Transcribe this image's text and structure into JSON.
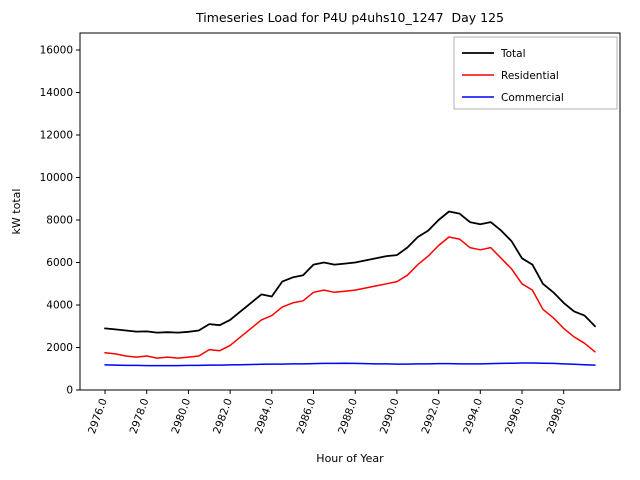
{
  "chart_data": {
    "type": "line",
    "title": "Timeseries Load for P4U p4uhs10_1247  Day 125",
    "xlabel": "Hour of Year",
    "ylabel": "kW total",
    "xlim": [
      2974.8,
      3000.7
    ],
    "ylim": [
      0,
      16800
    ],
    "grid": false,
    "legend_position": "upper right",
    "yticks": [
      0,
      2000,
      4000,
      6000,
      8000,
      10000,
      12000,
      14000,
      16000
    ],
    "xticks": [
      2976,
      2978,
      2980,
      2982,
      2984,
      2986,
      2988,
      2990,
      2992,
      2994,
      2996,
      2998
    ],
    "xtick_labels": [
      "2976.0",
      "2978.0",
      "2980.0",
      "2982.0",
      "2984.0",
      "2986.0",
      "2988.0",
      "2990.0",
      "2992.0",
      "2994.0",
      "2996.0",
      "2998.0"
    ],
    "x": [
      2976.0,
      2976.5,
      2977.0,
      2977.5,
      2978.0,
      2978.5,
      2979.0,
      2979.5,
      2980.0,
      2980.5,
      2981.0,
      2981.5,
      2982.0,
      2982.5,
      2983.0,
      2983.5,
      2984.0,
      2984.5,
      2985.0,
      2985.5,
      2986.0,
      2986.5,
      2987.0,
      2987.5,
      2988.0,
      2988.5,
      2989.0,
      2989.5,
      2990.0,
      2990.5,
      2991.0,
      2991.5,
      2992.0,
      2992.5,
      2993.0,
      2993.5,
      2994.0,
      2994.5,
      2995.0,
      2995.5,
      2996.0,
      2996.5,
      2997.0,
      2997.5,
      2998.0,
      2998.5,
      2999.0,
      2999.5
    ],
    "series": [
      {
        "name": "Total",
        "color": "#000000",
        "linewidth": 1.8,
        "values": [
          2900,
          2850,
          2800,
          2750,
          2760,
          2700,
          2720,
          2700,
          2740,
          2800,
          3100,
          3050,
          3300,
          3700,
          4100,
          4500,
          4400,
          5100,
          5300,
          5400,
          5900,
          6000,
          5900,
          5950,
          6000,
          6100,
          6200,
          6300,
          6350,
          6700,
          7200,
          7500,
          8000,
          8400,
          8300,
          7900,
          7800,
          7900,
          7500,
          7000,
          6200,
          5900,
          5000,
          4600,
          4100,
          3700,
          3500,
          3000
        ]
      },
      {
        "name": "Residential",
        "color": "#ff0000",
        "linewidth": 1.5,
        "values": [
          1750,
          1700,
          1600,
          1550,
          1600,
          1500,
          1550,
          1500,
          1550,
          1600,
          1900,
          1850,
          2100,
          2500,
          2900,
          3300,
          3500,
          3900,
          4100,
          4200,
          4600,
          4700,
          4600,
          4650,
          4700,
          4800,
          4900,
          5000,
          5100,
          5400,
          5900,
          6300,
          6800,
          7200,
          7100,
          6700,
          6600,
          6700,
          6200,
          5700,
          5000,
          4700,
          3800,
          3400,
          2900,
          2500,
          2200,
          1800
        ]
      },
      {
        "name": "Commercial",
        "color": "#0000ff",
        "linewidth": 1.5,
        "values": [
          1180,
          1170,
          1160,
          1160,
          1150,
          1150,
          1150,
          1150,
          1160,
          1160,
          1170,
          1170,
          1180,
          1190,
          1200,
          1210,
          1220,
          1220,
          1230,
          1230,
          1240,
          1250,
          1250,
          1260,
          1250,
          1240,
          1230,
          1230,
          1220,
          1220,
          1230,
          1230,
          1240,
          1240,
          1230,
          1230,
          1230,
          1240,
          1250,
          1260,
          1270,
          1270,
          1260,
          1250,
          1230,
          1210,
          1190,
          1170
        ]
      }
    ]
  }
}
